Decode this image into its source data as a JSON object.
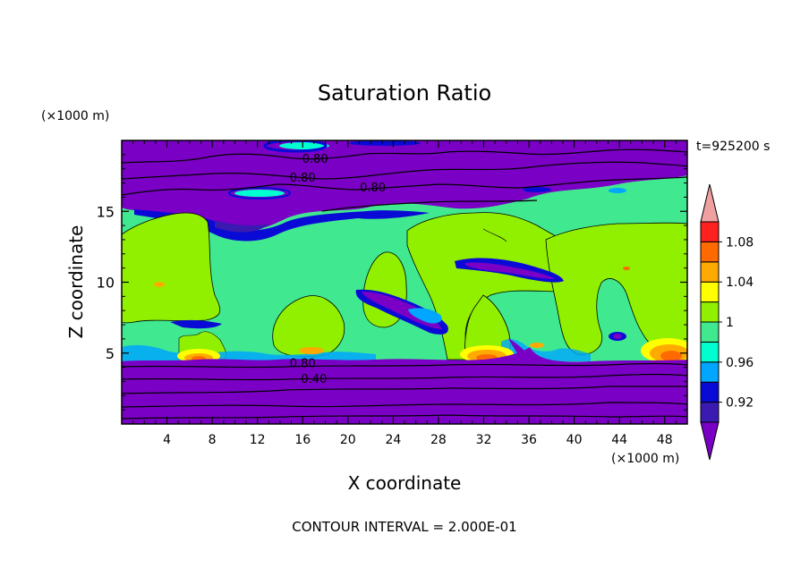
{
  "chart_data": {
    "type": "contour",
    "title": "Saturation Ratio",
    "xlabel": "X coordinate",
    "ylabel": "Z coordinate",
    "x_unit": "(×1000 m)",
    "y_unit": "(×1000 m)",
    "time_label": "t=925200 s",
    "footer": "CONTOUR INTERVAL = 2.000E-01",
    "xlim": [
      0,
      50
    ],
    "ylim": [
      0,
      20
    ],
    "x_ticks": [
      "4",
      "8",
      "12",
      "16",
      "20",
      "24",
      "28",
      "32",
      "36",
      "40",
      "44",
      "48"
    ],
    "y_ticks": [
      "5",
      "10",
      "15"
    ],
    "colorbar": {
      "labels": [
        "0.92",
        "0.96",
        "1",
        "1.04",
        "1.08"
      ],
      "bands": [
        {
          "color": "#7a00c6"
        },
        {
          "color": "#3a1ab0"
        },
        {
          "color": "#0a0ad6"
        },
        {
          "color": "#00a6ff"
        },
        {
          "color": "#00ffd0"
        },
        {
          "color": "#40e890"
        },
        {
          "color": "#90f000"
        },
        {
          "color": "#ffff00"
        },
        {
          "color": "#ffaa00"
        },
        {
          "color": "#ff6a00"
        },
        {
          "color": "#ff2020"
        },
        {
          "color": "#f0a0a0"
        }
      ]
    },
    "contour_labels": [
      {
        "text": "0.80",
        "x": 17.1,
        "z": 18.6
      },
      {
        "text": "0.80",
        "x": 16.0,
        "z": 17.3
      },
      {
        "text": "0.80",
        "x": 22.2,
        "z": 16.6
      },
      {
        "text": "0.80",
        "x": 16.0,
        "z": 4.2
      },
      {
        "text": "0.40",
        "x": 17.0,
        "z": 3.1
      }
    ]
  }
}
